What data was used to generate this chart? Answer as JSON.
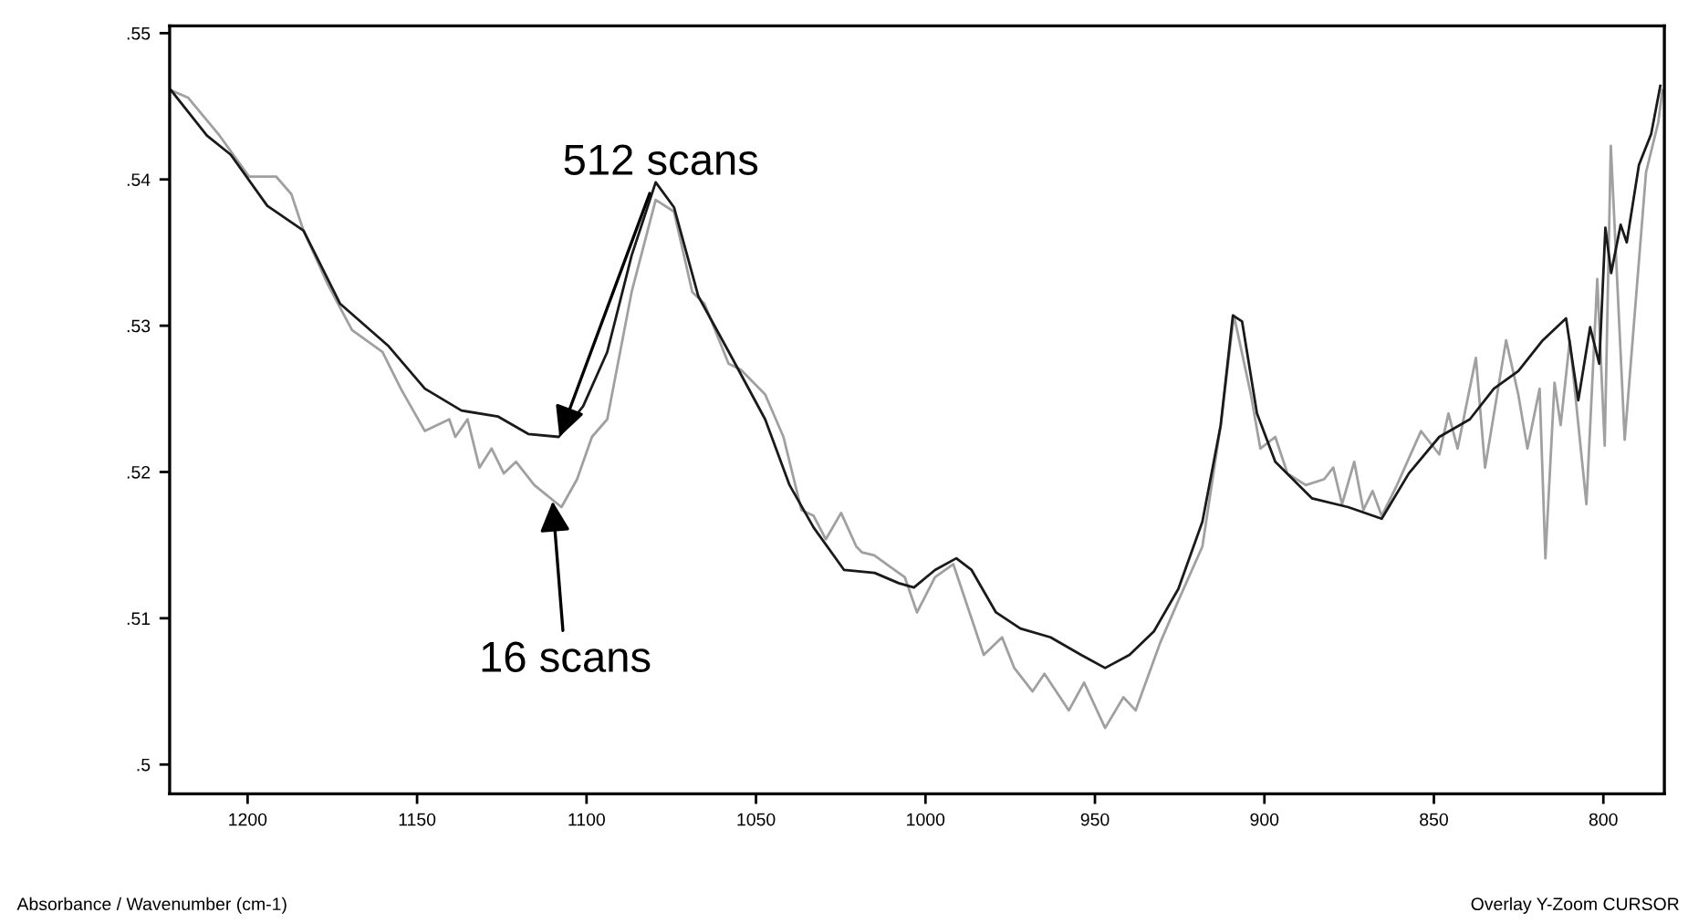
{
  "chart_data": {
    "type": "line",
    "xlim": [
      1223,
      782
    ],
    "ylim": [
      0.498,
      0.5505
    ],
    "xticks": [
      1200,
      1150,
      1100,
      1050,
      1000,
      950,
      900,
      850,
      800
    ],
    "yticks": [
      {
        "value": 0.55,
        "label": ".55"
      },
      {
        "value": 0.54,
        "label": ".54"
      },
      {
        "value": 0.53,
        "label": ".53"
      },
      {
        "value": 0.52,
        "label": ".52"
      },
      {
        "value": 0.51,
        "label": ".51"
      },
      {
        "value": 0.5,
        "label": ".5"
      }
    ],
    "grid": false,
    "legend": false,
    "marker": "none",
    "line_style": "solid",
    "series": [
      {
        "color": "#a0a0a0",
        "x": [
          1222.6,
          1217.6,
          1208.6,
          1199.6,
          1191.6,
          1187.1,
          1183.5,
          1176.3,
          1169.2,
          1160.2,
          1154.8,
          1147.7,
          1140.5,
          1138.7,
          1135.1,
          1131.6,
          1128,
          1124.4,
          1120.8,
          1115.4,
          1107.4,
          1102.8,
          1098.4,
          1093.9,
          1086.7,
          1079.6,
          1074.2,
          1068.8,
          1065.2,
          1058.1,
          1054.5,
          1047.3,
          1041.9,
          1036.6,
          1033,
          1029.4,
          1024.9,
          1020.4,
          1018.7,
          1015.1,
          1009.7,
          1006.1,
          1002.5,
          997.2,
          991.8,
          982.8,
          977.4,
          973.8,
          968.4,
          964.9,
          957.7,
          953.2,
          947.0,
          941.6,
          938.0,
          930.8,
          925.4,
          918.3,
          912.9,
          909.0,
          904.0,
          901.2,
          896.8,
          893.2,
          887.8,
          882.4,
          879.7,
          877.1,
          873.5,
          870.8,
          868.1,
          865.4,
          860.9,
          853.8,
          848.4,
          845.7,
          843.0,
          837.6,
          834.9,
          828.7,
          825.1,
          822.4,
          818.8,
          817.1,
          814.4,
          812.6,
          809.9,
          805.0,
          801.8,
          799.6,
          797.8,
          793.7,
          790.1,
          787.4,
          783.8,
          782.6
        ],
        "values": [
          0.5461,
          0.5456,
          0.5431,
          0.5402,
          0.5402,
          0.539,
          0.5365,
          0.5328,
          0.5297,
          0.5282,
          0.5257,
          0.5228,
          0.5236,
          0.5224,
          0.5236,
          0.5203,
          0.5216,
          0.5199,
          0.5207,
          0.5191,
          0.5176,
          0.5195,
          0.5224,
          0.5236,
          0.5323,
          0.5386,
          0.5378,
          0.5323,
          0.5315,
          0.5274,
          0.527,
          0.5253,
          0.5224,
          0.5174,
          0.517,
          0.5154,
          0.5172,
          0.5149,
          0.5145,
          0.5143,
          0.5134,
          0.5128,
          0.5104,
          0.5128,
          0.5137,
          0.5075,
          0.5087,
          0.5066,
          0.505,
          0.5062,
          0.5037,
          0.5056,
          0.5025,
          0.5046,
          0.5037,
          0.5083,
          0.5112,
          0.5149,
          0.5232,
          0.5307,
          0.5253,
          0.5216,
          0.5224,
          0.5199,
          0.5191,
          0.5195,
          0.5203,
          0.5178,
          0.5207,
          0.5174,
          0.5187,
          0.517,
          0.5191,
          0.5228,
          0.5212,
          0.524,
          0.5216,
          0.5278,
          0.5203,
          0.529,
          0.5253,
          0.5216,
          0.5257,
          0.5141,
          0.5261,
          0.5232,
          0.529,
          0.5178,
          0.5332,
          0.5218,
          0.5423,
          0.5222,
          0.5327,
          0.5405,
          0.5439,
          0.5461
        ]
      },
      {
        "color": "#1a1a1a",
        "x": [
          1222.6,
          1212,
          1205,
          1194.2,
          1183.5,
          1172.7,
          1158.4,
          1147.7,
          1136.9,
          1126.2,
          1117.2,
          1108.2,
          1101,
          1093.9,
          1086.7,
          1079.6,
          1074.2,
          1067,
          1058,
          1047.3,
          1040.1,
          1033,
          1024,
          1015,
          1007.9,
          1003.4,
          997.2,
          990.9,
          986.4,
          979.2,
          972.0,
          963.1,
          954.1,
          947.0,
          939.8,
          932.6,
          925.4,
          918.3,
          912.9,
          909.3,
          906.6,
          902.2,
          896.8,
          886.0,
          875.3,
          865.4,
          857.4,
          848.4,
          839.4,
          832.3,
          825.1,
          817.9,
          811.0,
          807.4,
          803.9,
          801.2,
          799.4,
          797.7,
          794.9,
          793.1,
          789.5,
          785.9,
          783.2
        ],
        "values": [
          0.5461,
          0.543,
          0.5417,
          0.5382,
          0.5365,
          0.5315,
          0.5286,
          0.5257,
          0.5242,
          0.5238,
          0.5226,
          0.5224,
          0.5245,
          0.5282,
          0.5348,
          0.5398,
          0.5381,
          0.532,
          0.5282,
          0.5236,
          0.5191,
          0.5162,
          0.5133,
          0.5131,
          0.5124,
          0.5121,
          0.5133,
          0.5141,
          0.5133,
          0.5104,
          0.5093,
          0.5087,
          0.5075,
          0.5066,
          0.5075,
          0.5091,
          0.512,
          0.5166,
          0.5232,
          0.5307,
          0.5303,
          0.524,
          0.5207,
          0.5182,
          0.5176,
          0.5168,
          0.5199,
          0.5224,
          0.5236,
          0.5257,
          0.5269,
          0.529,
          0.5305,
          0.5249,
          0.5299,
          0.5274,
          0.5367,
          0.5336,
          0.5369,
          0.5357,
          0.541,
          0.5431,
          0.5464
        ]
      }
    ],
    "annotations": [
      {
        "text": "512 scans",
        "x": 1108,
        "y": 0.5224
      },
      {
        "text": "16 scans",
        "x": 1110,
        "y": 0.518
      },
      "Absorbance / Wavenumber (cm-1)",
      "Overlay Y-Zoom CURSOR"
    ]
  }
}
